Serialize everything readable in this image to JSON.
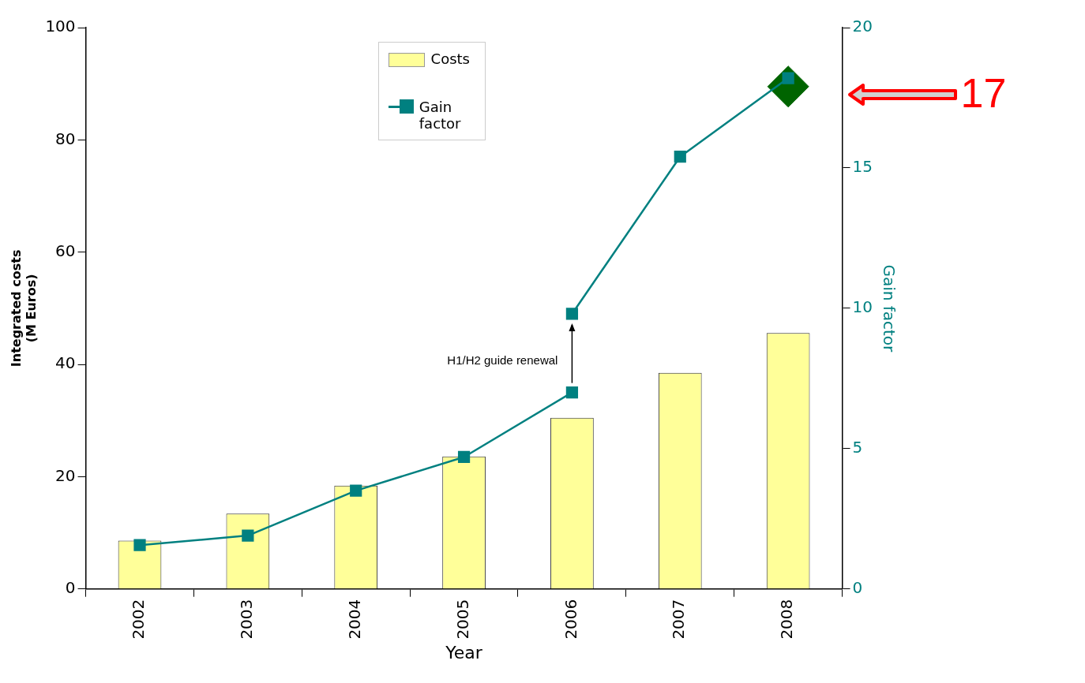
{
  "chart_data": {
    "type": "bar",
    "xlabel": "Year",
    "ylabel": "Integrated costs\n(M Euros)",
    "y2label": "Gain factor",
    "categories": [
      "2002",
      "2003",
      "2004",
      "2005",
      "2006",
      "2007",
      "2008"
    ],
    "series": [
      {
        "name": "Costs",
        "color": "#ffff99",
        "values": [
          8.6,
          13.4,
          18.4,
          23.6,
          30.5,
          38.5,
          45.6
        ]
      },
      {
        "name": "Gain factor",
        "type": "line",
        "axis": "y2",
        "color": "#008080",
        "marker": "square",
        "values": [
          1.56,
          1.9,
          3.5,
          4.7,
          7.0,
          null,
          null
        ]
      },
      {
        "type": "line",
        "axis": "y2",
        "color": "#008080",
        "marker": "square",
        "values": [
          null,
          null,
          null,
          null,
          9.8,
          15.4,
          18.2
        ]
      },
      {
        "type": "scatter",
        "axis": "y2",
        "color": "#006400",
        "marker": "diamond",
        "values": [
          null,
          null,
          null,
          null,
          null,
          null,
          17.9
        ]
      }
    ],
    "ylim": [
      0,
      100
    ],
    "yticks": [
      0,
      20,
      40,
      60,
      80,
      100
    ],
    "y2lim": [
      0,
      20
    ],
    "y2ticks": [
      0,
      5,
      10,
      15,
      20
    ],
    "grid": false,
    "legend": "top",
    "annotations": [
      "H1/H2 guide renewal",
      "17"
    ]
  }
}
